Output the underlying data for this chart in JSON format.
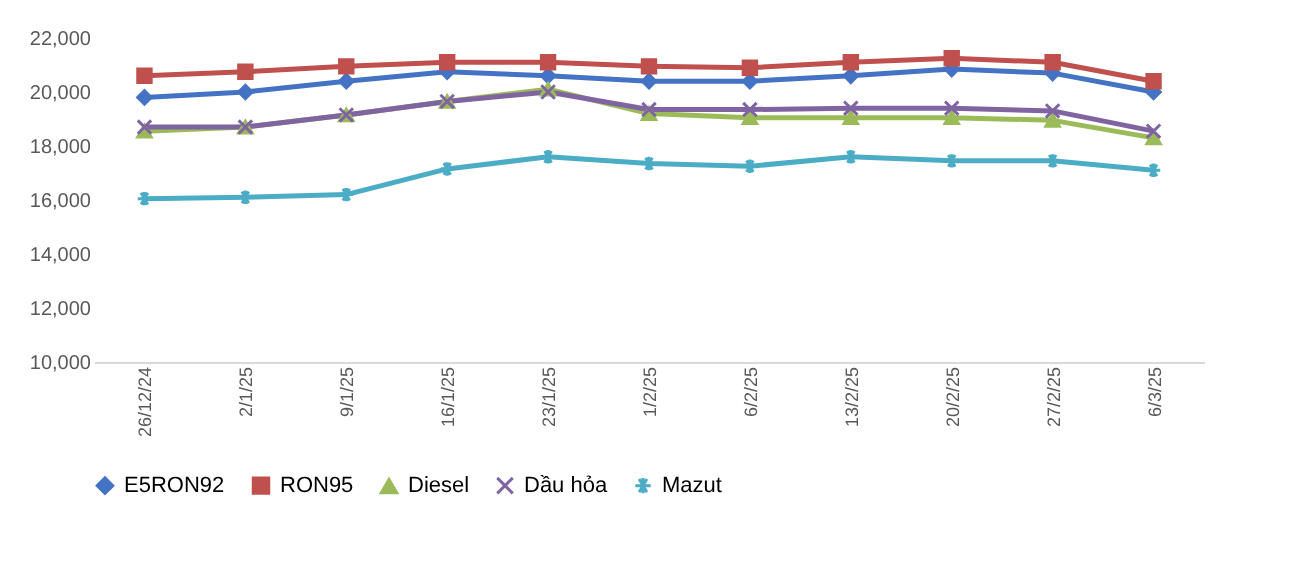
{
  "chart_data": {
    "type": "line",
    "categories": [
      "26/12/24",
      "2/1/25",
      "9/1/25",
      "16/1/25",
      "23/1/25",
      "1/2/25",
      "6/2/25",
      "13/2/25",
      "20/2/25",
      "27/2/25",
      "6/3/25"
    ],
    "ylim": [
      10000,
      22000
    ],
    "yticks": [
      {
        "value": 10000,
        "label": "10,000"
      },
      {
        "value": 12000,
        "label": "12,000"
      },
      {
        "value": 14000,
        "label": "14,000"
      },
      {
        "value": 16000,
        "label": "16,000"
      },
      {
        "value": 18000,
        "label": "18,000"
      },
      {
        "value": 20000,
        "label": "20,000"
      },
      {
        "value": 22000,
        "label": "22,000"
      }
    ],
    "grid": false,
    "legend": "bottom",
    "line_style": "solid",
    "series": [
      {
        "name": "E5RON92",
        "color": "#4472c4",
        "marker": "diamond",
        "values": [
          19800,
          20000,
          20400,
          20750,
          20600,
          20400,
          20400,
          20600,
          20850,
          20700,
          20000
        ]
      },
      {
        "name": "RON95",
        "color": "#c0504d",
        "marker": "square",
        "values": [
          20600,
          20750,
          20950,
          21100,
          21100,
          20950,
          20900,
          21100,
          21250,
          21100,
          20400
        ]
      },
      {
        "name": "Diesel",
        "color": "#9bbb59",
        "marker": "triangle",
        "values": [
          18550,
          18700,
          19150,
          19650,
          20100,
          19200,
          19050,
          19050,
          19050,
          18950,
          18300
        ]
      },
      {
        "name": "Dầu hỏa",
        "color": "#8064a2",
        "marker": "cross",
        "values": [
          18700,
          18700,
          19150,
          19650,
          20000,
          19350,
          19350,
          19400,
          19400,
          19300,
          18550
        ]
      },
      {
        "name": "Mazut",
        "color": "#4bacc6",
        "marker": "cross",
        "values": [
          16050,
          16100,
          16200,
          17150,
          17600,
          17350,
          17250,
          17600,
          17450,
          17450,
          17100
        ]
      }
    ]
  }
}
